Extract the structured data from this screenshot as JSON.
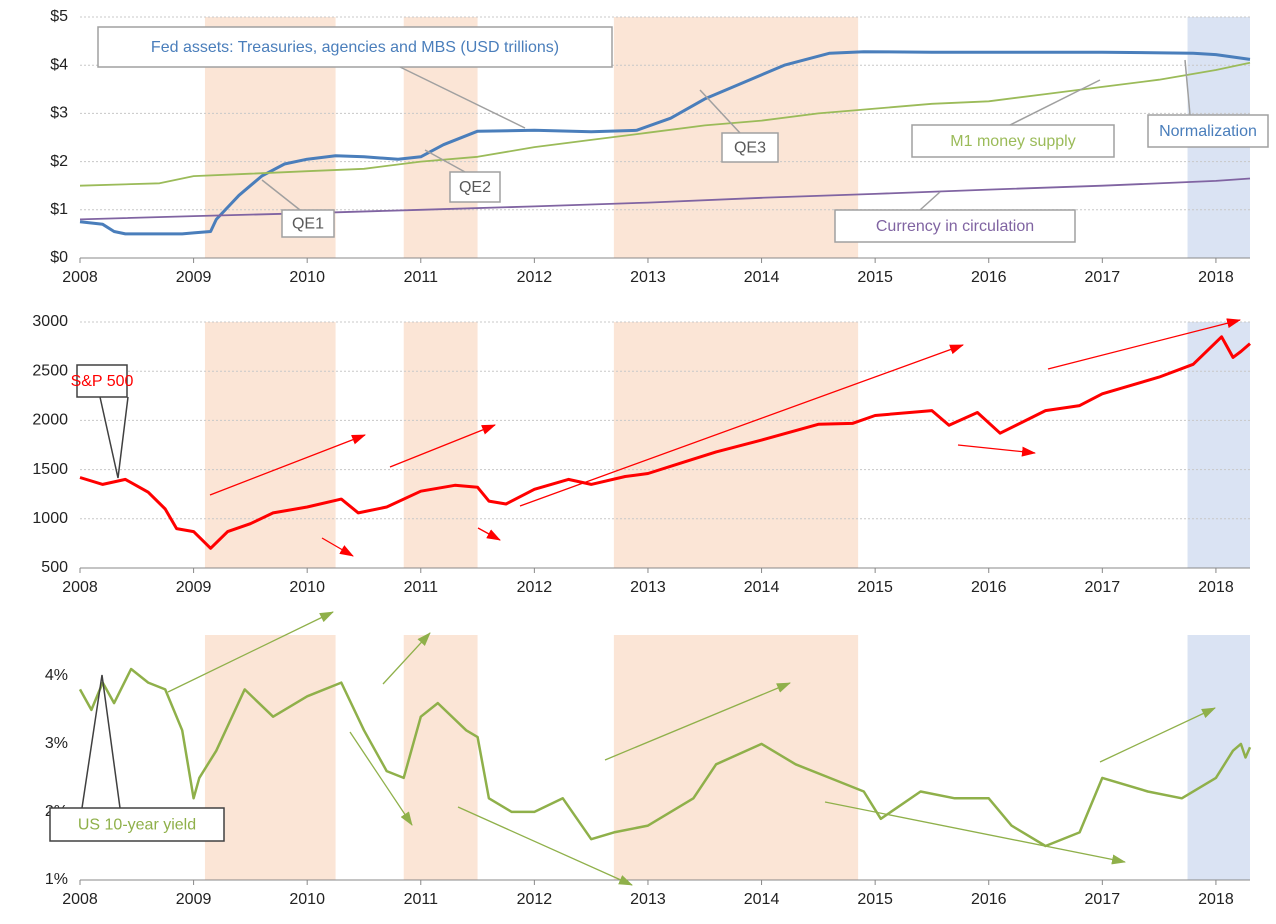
{
  "chart_data": [
    {
      "type": "line",
      "xlim": [
        2008,
        2018.3
      ],
      "xticks": [
        2008,
        2009,
        2010,
        2011,
        2012,
        2013,
        2014,
        2015,
        2016,
        2017,
        2018
      ],
      "ylim": [
        0,
        5
      ],
      "yticks": [
        {
          "value": 0,
          "label": "$0"
        },
        {
          "value": 1,
          "label": "$1"
        },
        {
          "value": 2,
          "label": "$2"
        },
        {
          "value": 3,
          "label": "$3"
        },
        {
          "value": 4,
          "label": "$4"
        },
        {
          "value": 5,
          "label": "$5"
        }
      ],
      "grid": true,
      "bands": [
        {
          "label": "QE1",
          "start": 2009.1,
          "end": 2010.25,
          "color": "#fbe5d6"
        },
        {
          "label": "QE2",
          "start": 2010.85,
          "end": 2011.5,
          "color": "#fbe5d6"
        },
        {
          "label": "QE3",
          "start": 2012.7,
          "end": 2014.85,
          "color": "#fbe5d6"
        },
        {
          "label": "Normalization",
          "start": 2017.75,
          "end": 2018.3,
          "color": "#dae3f3"
        }
      ],
      "series": [
        {
          "name": "Fed assets: Treasuries, agencies and MBS (USD trillions)",
          "color": "#4a7ebb",
          "x": [
            2008,
            2008.2,
            2008.3,
            2008.4,
            2008.9,
            2009.0,
            2009.15,
            2009.2,
            2009.4,
            2009.6,
            2009.8,
            2010.0,
            2010.25,
            2010.5,
            2010.8,
            2011.0,
            2011.2,
            2011.5,
            2012.0,
            2012.5,
            2012.9,
            2013.2,
            2013.5,
            2013.8,
            2014.2,
            2014.6,
            2014.9,
            2015.5,
            2016,
            2017,
            2017.8,
            2018.0,
            2018.3
          ],
          "values": [
            0.75,
            0.7,
            0.55,
            0.5,
            0.5,
            0.52,
            0.55,
            0.8,
            1.3,
            1.7,
            1.95,
            2.05,
            2.12,
            2.1,
            2.05,
            2.1,
            2.35,
            2.63,
            2.65,
            2.62,
            2.65,
            2.9,
            3.3,
            3.6,
            4.0,
            4.25,
            4.28,
            4.27,
            4.27,
            4.27,
            4.25,
            4.22,
            4.12
          ]
        },
        {
          "name": "M1 money supply",
          "color": "#9bbb59",
          "x": [
            2008,
            2008.7,
            2009,
            2009.5,
            2010,
            2010.5,
            2011,
            2011.5,
            2012,
            2012.5,
            2013,
            2013.5,
            2014,
            2014.5,
            2015,
            2015.5,
            2016,
            2016.5,
            2017,
            2017.5,
            2018,
            2018.3
          ],
          "values": [
            1.5,
            1.55,
            1.7,
            1.75,
            1.8,
            1.85,
            2.0,
            2.1,
            2.3,
            2.45,
            2.6,
            2.75,
            2.85,
            3.0,
            3.1,
            3.2,
            3.25,
            3.4,
            3.55,
            3.7,
            3.9,
            4.05
          ]
        },
        {
          "name": "Currency in circulation",
          "color": "#8064a2",
          "x": [
            2008,
            2009,
            2010,
            2011,
            2012,
            2013,
            2014,
            2015,
            2016,
            2017,
            2018,
            2018.3
          ],
          "values": [
            0.8,
            0.87,
            0.93,
            1.0,
            1.07,
            1.15,
            1.25,
            1.33,
            1.42,
            1.5,
            1.6,
            1.65
          ]
        }
      ]
    },
    {
      "type": "line",
      "xlim": [
        2008,
        2018.3
      ],
      "xticks": [
        2008,
        2009,
        2010,
        2011,
        2012,
        2013,
        2014,
        2015,
        2016,
        2017,
        2018
      ],
      "ylim": [
        500,
        3000
      ],
      "yticks": [
        500,
        1000,
        1500,
        2000,
        2500,
        3000
      ],
      "grid": true,
      "bands": [
        {
          "start": 2009.1,
          "end": 2010.25,
          "color": "#fbe5d6"
        },
        {
          "start": 2010.85,
          "end": 2011.5,
          "color": "#fbe5d6"
        },
        {
          "start": 2012.7,
          "end": 2014.85,
          "color": "#fbe5d6"
        },
        {
          "start": 2017.75,
          "end": 2018.3,
          "color": "#dae3f3"
        }
      ],
      "series": [
        {
          "name": "S&P 500",
          "color": "#ff0000",
          "x": [
            2008,
            2008.2,
            2008.4,
            2008.6,
            2008.75,
            2008.85,
            2009,
            2009.15,
            2009.3,
            2009.5,
            2009.7,
            2010,
            2010.3,
            2010.45,
            2010.7,
            2011,
            2011.3,
            2011.5,
            2011.6,
            2011.75,
            2012,
            2012.3,
            2012.5,
            2012.8,
            2013,
            2013.3,
            2013.6,
            2014,
            2014.5,
            2014.8,
            2015,
            2015.5,
            2015.65,
            2015.9,
            2016.1,
            2016.5,
            2016.8,
            2017,
            2017.5,
            2017.8,
            2018.05,
            2018.15,
            2018.22,
            2018.3
          ],
          "values": [
            1420,
            1350,
            1400,
            1270,
            1100,
            900,
            870,
            700,
            870,
            950,
            1060,
            1120,
            1200,
            1060,
            1120,
            1280,
            1340,
            1320,
            1180,
            1150,
            1300,
            1400,
            1350,
            1430,
            1460,
            1570,
            1680,
            1800,
            1960,
            1970,
            2050,
            2100,
            1950,
            2080,
            1870,
            2100,
            2150,
            2270,
            2440,
            2570,
            2850,
            2640,
            2700,
            2780
          ]
        }
      ]
    },
    {
      "type": "line",
      "xlim": [
        2008,
        2018.3
      ],
      "xticks": [
        2008,
        2009,
        2010,
        2011,
        2012,
        2013,
        2014,
        2015,
        2016,
        2017,
        2018
      ],
      "ylim": [
        1,
        4.6
      ],
      "yticks": [
        {
          "value": 1,
          "label": "1%"
        },
        {
          "value": 2,
          "label": "2%"
        },
        {
          "value": 3,
          "label": "3%"
        },
        {
          "value": 4,
          "label": "4%"
        }
      ],
      "grid": false,
      "bands": [
        {
          "start": 2009.1,
          "end": 2010.25,
          "color": "#fbe5d6"
        },
        {
          "start": 2010.85,
          "end": 2011.5,
          "color": "#fbe5d6"
        },
        {
          "start": 2012.7,
          "end": 2014.85,
          "color": "#fbe5d6"
        },
        {
          "start": 2017.75,
          "end": 2018.3,
          "color": "#dae3f3"
        }
      ],
      "series": [
        {
          "name": "US 10-year yield",
          "color": "#8fb04a",
          "x": [
            2008,
            2008.1,
            2008.2,
            2008.3,
            2008.45,
            2008.6,
            2008.75,
            2008.9,
            2009,
            2009.05,
            2009.2,
            2009.45,
            2009.7,
            2010,
            2010.3,
            2010.5,
            2010.7,
            2010.85,
            2011,
            2011.15,
            2011.4,
            2011.5,
            2011.6,
            2011.8,
            2012,
            2012.25,
            2012.5,
            2012.7,
            2013,
            2013.4,
            2013.6,
            2014,
            2014.3,
            2014.6,
            2014.9,
            2015.05,
            2015.4,
            2015.7,
            2016,
            2016.2,
            2016.5,
            2016.8,
            2017,
            2017.4,
            2017.7,
            2018,
            2018.15,
            2018.22,
            2018.26,
            2018.3
          ],
          "values": [
            3.8,
            3.5,
            3.9,
            3.6,
            4.1,
            3.9,
            3.8,
            3.2,
            2.2,
            2.5,
            2.9,
            3.8,
            3.4,
            3.7,
            3.9,
            3.2,
            2.6,
            2.5,
            3.4,
            3.6,
            3.2,
            3.1,
            2.2,
            2.0,
            2.0,
            2.2,
            1.6,
            1.7,
            1.8,
            2.2,
            2.7,
            3.0,
            2.7,
            2.5,
            2.3,
            1.9,
            2.3,
            2.2,
            2.2,
            1.8,
            1.5,
            1.7,
            2.5,
            2.3,
            2.2,
            2.5,
            2.9,
            3.0,
            2.8,
            2.95
          ]
        }
      ]
    }
  ]
}
